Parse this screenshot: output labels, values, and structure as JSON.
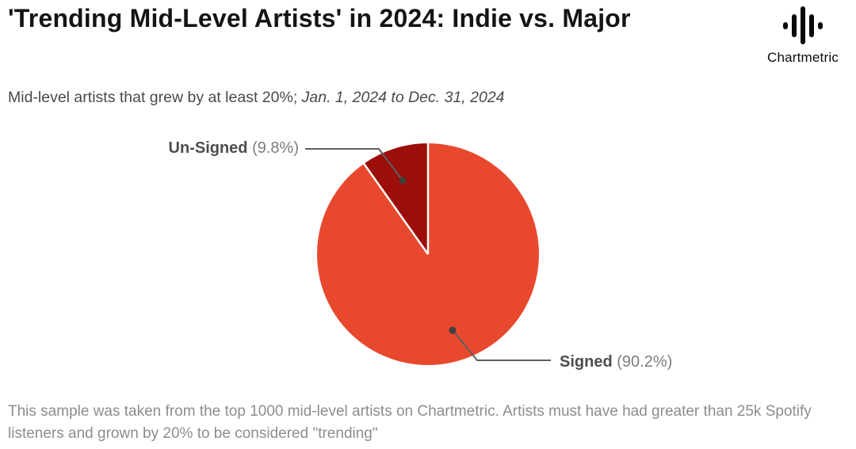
{
  "header": {
    "title": "'Trending Mid-Level Artists' in 2024: Indie vs. Major",
    "subtitle_regular": "Mid-level artists that grew by at least 20%; ",
    "subtitle_italic": "Jan. 1, 2024 to Dec. 31, 2024"
  },
  "brand": {
    "name": "Chartmetric"
  },
  "chart_data": {
    "type": "pie",
    "title": "'Trending Mid-Level Artists' in 2024: Indie vs. Major",
    "start_angle_deg": -90,
    "direction": "clockwise",
    "legend_position": "callout-labels",
    "slices": [
      {
        "label": "Signed",
        "value": 90.2,
        "display_pct": "(90.2%)",
        "color": "#E8492E"
      },
      {
        "label": "Un-Signed",
        "value": 9.8,
        "display_pct": "(9.8%)",
        "color": "#9B0E0A"
      }
    ],
    "separator_color": "#ffffff"
  },
  "footer": {
    "note": "This sample was taken from the top 1000 mid-level artists on Chartmetric. Artists must have had greater than 25k Spotify listeners and grown by 20% to be considered \"trending\""
  },
  "colors": {
    "signed_slice": "#E8492E",
    "unsigned_slice": "#9B0E0A",
    "title_text": "#141414",
    "subtitle_text": "#4a4a4a",
    "footer_text": "#8d8d8d",
    "callout_line": "#5f5f5f"
  }
}
